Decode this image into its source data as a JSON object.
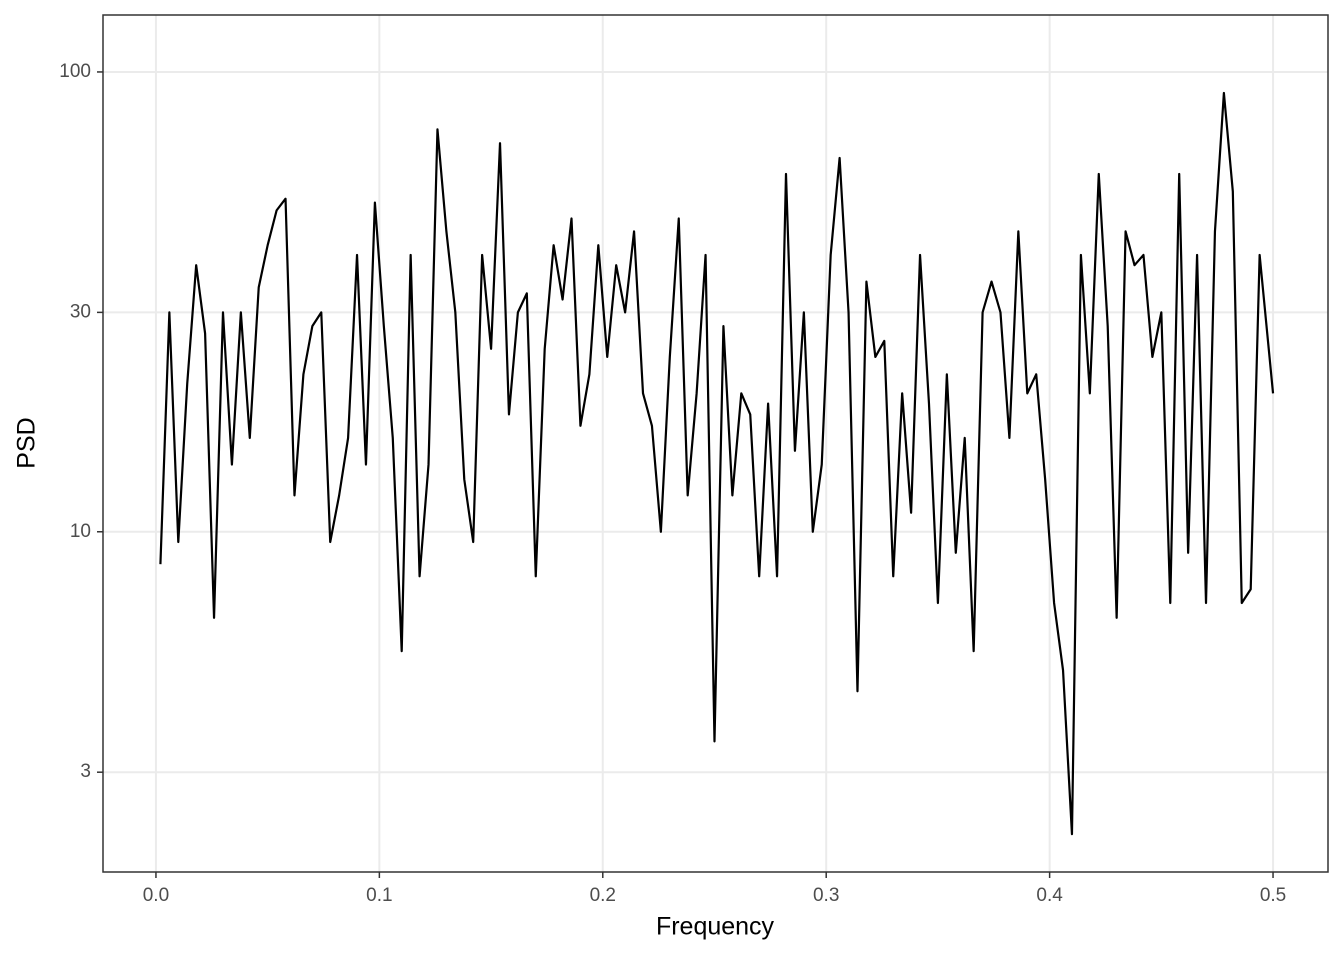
{
  "chart_data": {
    "type": "line",
    "x_label": "Frequency",
    "y_label": "PSD",
    "log_scale_y": true,
    "grid": true,
    "color": "#000000",
    "xlim": [
      -0.0237,
      0.5246
    ],
    "ylim": [
      1.82,
      133
    ],
    "xticks": [
      {
        "value": 0,
        "label": "0.0"
      },
      0.1,
      0.2,
      0.3,
      0.4,
      0.5
    ],
    "yticks": [
      3,
      10,
      30,
      100
    ],
    "x": [
      0.002,
      0.006,
      0.01,
      0.014,
      0.018,
      0.022,
      0.026,
      0.03,
      0.034,
      0.038,
      0.042,
      0.046,
      0.05,
      0.054,
      0.058,
      0.062,
      0.066,
      0.07,
      0.074,
      0.078,
      0.082,
      0.086,
      0.09,
      0.094,
      0.098,
      0.102,
      0.106,
      0.11,
      0.114,
      0.118,
      0.122,
      0.126,
      0.13,
      0.134,
      0.138,
      0.142,
      0.146,
      0.15,
      0.154,
      0.158,
      0.162,
      0.166,
      0.17,
      0.174,
      0.178,
      0.182,
      0.186,
      0.19,
      0.194,
      0.198,
      0.202,
      0.206,
      0.21,
      0.214,
      0.218,
      0.222,
      0.226,
      0.23,
      0.234,
      0.238,
      0.242,
      0.246,
      0.25,
      0.254,
      0.258,
      0.262,
      0.266,
      0.27,
      0.274,
      0.278,
      0.282,
      0.286,
      0.29,
      0.294,
      0.298,
      0.302,
      0.306,
      0.31,
      0.314,
      0.318,
      0.322,
      0.326,
      0.33,
      0.334,
      0.338,
      0.342,
      0.346,
      0.35,
      0.354,
      0.358,
      0.362,
      0.366,
      0.37,
      0.374,
      0.378,
      0.382,
      0.386,
      0.39,
      0.394,
      0.398,
      0.402,
      0.406,
      0.41,
      0.414,
      0.418,
      0.422,
      0.426,
      0.43,
      0.434,
      0.438,
      0.442,
      0.446,
      0.45,
      0.454,
      0.458,
      0.462,
      0.466,
      0.47,
      0.474,
      0.478,
      0.482,
      0.486,
      0.49,
      0.494,
      0.5
    ],
    "values": [
      8.5,
      30,
      9.5,
      21,
      38,
      27,
      6.5,
      30,
      14,
      30,
      16,
      34,
      42,
      50,
      53,
      12,
      22,
      28,
      30,
      9.5,
      12,
      16,
      40,
      14,
      52,
      28,
      16,
      5.5,
      40,
      8,
      14,
      75,
      45,
      30,
      13,
      9.5,
      40,
      25,
      70,
      18,
      30,
      33,
      8,
      25,
      42,
      32,
      48,
      17,
      22,
      42,
      24,
      38,
      30,
      45,
      20,
      17,
      10,
      24,
      48,
      12,
      20,
      40,
      3.5,
      28,
      12,
      20,
      18,
      8,
      19,
      8,
      60,
      15,
      30,
      10,
      14,
      40,
      65,
      30,
      4.5,
      35,
      24,
      26,
      8,
      20,
      11,
      40,
      19,
      7,
      22,
      9,
      16,
      5.5,
      30,
      35,
      30,
      16,
      45,
      20,
      22,
      13,
      7,
      5,
      2.2,
      40,
      20,
      60,
      28,
      6.5,
      45,
      38,
      40,
      24,
      30,
      7,
      60,
      9,
      40,
      7,
      45,
      90,
      55,
      7,
      7.5,
      40,
      20
    ]
  }
}
